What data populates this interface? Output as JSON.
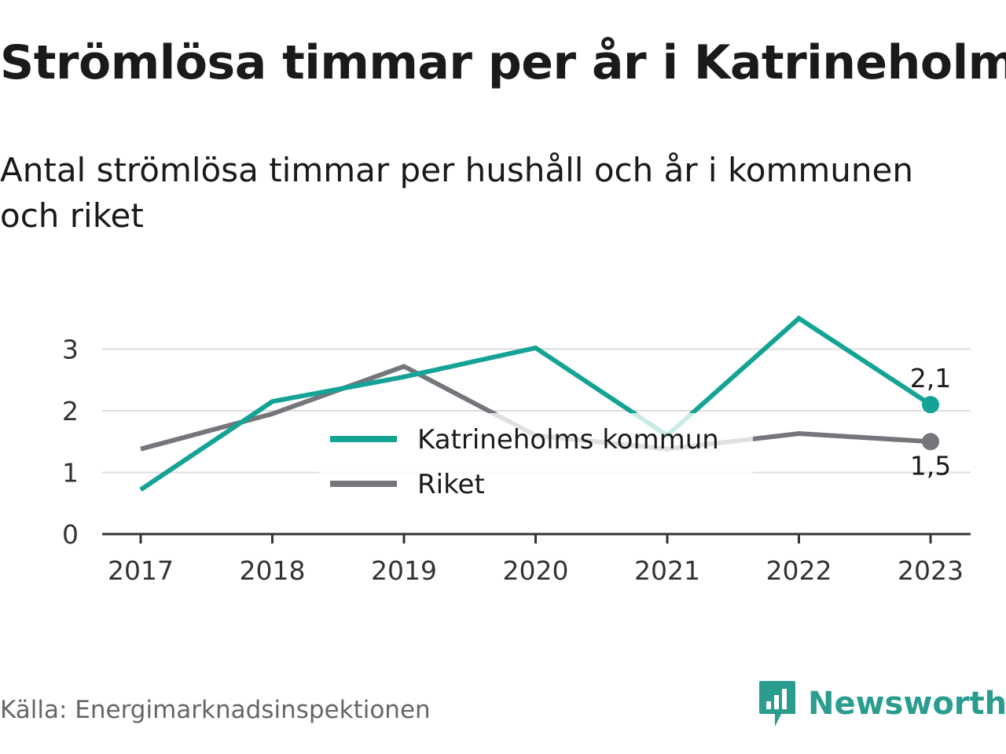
{
  "title": "Strömlösa timmar per år i Katrineholm",
  "subtitle": "Antal strömlösa timmar per hushåll och år i kommunen och riket",
  "source": "Källa: Energimarknadsinspektionen",
  "brand": {
    "name": "Newsworthy",
    "icon": "bar-chart-speech-bubble-icon",
    "color": "#2a9d8f"
  },
  "chart_data": {
    "type": "line",
    "x": [
      "2017",
      "2018",
      "2019",
      "2020",
      "2021",
      "2022",
      "2023"
    ],
    "y_ticks": [
      "0",
      "1",
      "2",
      "3"
    ],
    "ylim": [
      0,
      3.5
    ],
    "grid": true,
    "legend_placement": "center",
    "series": [
      {
        "name": "Katrineholms kommun",
        "color": "#14a394",
        "values": [
          0.72,
          2.15,
          2.55,
          3.02,
          1.6,
          3.5,
          2.1
        ],
        "end_label": "2,1"
      },
      {
        "name": "Riket",
        "color": "#75757c",
        "values": [
          1.38,
          1.95,
          2.72,
          1.6,
          1.38,
          1.63,
          1.5
        ],
        "end_label": "1,5"
      }
    ]
  }
}
